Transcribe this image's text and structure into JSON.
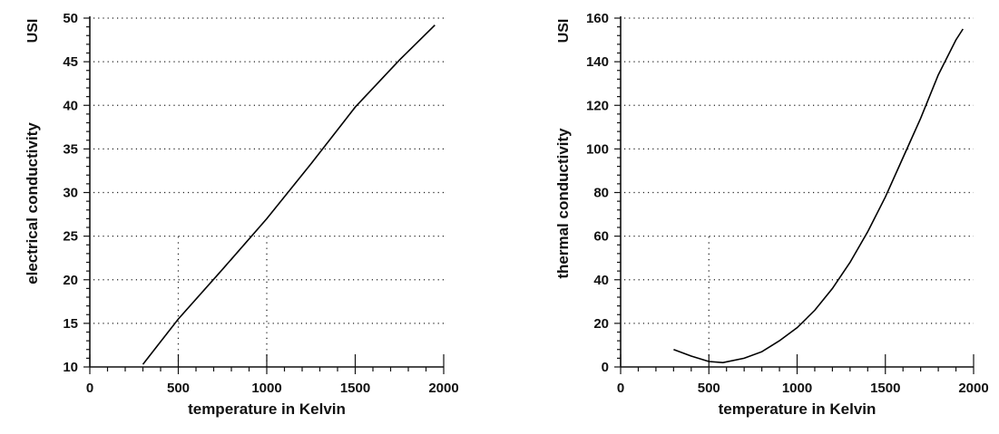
{
  "chart_data": [
    {
      "type": "line",
      "xlabel": "temperature in Kelvin",
      "ylabel": "electrical conductivity",
      "unit_label": "USI",
      "xlim": [
        0,
        2000
      ],
      "ylim": [
        10,
        50
      ],
      "x_ticks": [
        0,
        500,
        1000,
        1500,
        2000
      ],
      "y_ticks": [
        10,
        15,
        20,
        25,
        30,
        35,
        40,
        45,
        50
      ],
      "grid": "dotted-horizontal",
      "vertical_grid_at": [
        500,
        1000
      ],
      "series": [
        {
          "x": [
            300,
            500,
            750,
            1000,
            1250,
            1500,
            1750,
            1950
          ],
          "y": [
            10.3,
            15.5,
            21.2,
            27.0,
            33.3,
            39.8,
            45.2,
            49.2
          ]
        }
      ]
    },
    {
      "type": "line",
      "xlabel": "temperature in Kelvin",
      "ylabel": "thermal conductivity",
      "unit_label": "USI",
      "xlim": [
        0,
        2000
      ],
      "ylim": [
        0,
        160
      ],
      "x_ticks": [
        0,
        500,
        1000,
        1500,
        2000
      ],
      "y_ticks": [
        0,
        20,
        40,
        60,
        80,
        100,
        120,
        140,
        160
      ],
      "grid": "dotted-horizontal",
      "vertical_grid_at": [
        500
      ],
      "series": [
        {
          "x": [
            300,
            400,
            500,
            580,
            700,
            800,
            900,
            1000,
            1100,
            1200,
            1300,
            1400,
            1500,
            1600,
            1700,
            1800,
            1900,
            1940
          ],
          "y": [
            8,
            5,
            2.5,
            2,
            4,
            7,
            12,
            18,
            26,
            36,
            48,
            62,
            78,
            96,
            114,
            134,
            150,
            155
          ]
        }
      ]
    }
  ]
}
